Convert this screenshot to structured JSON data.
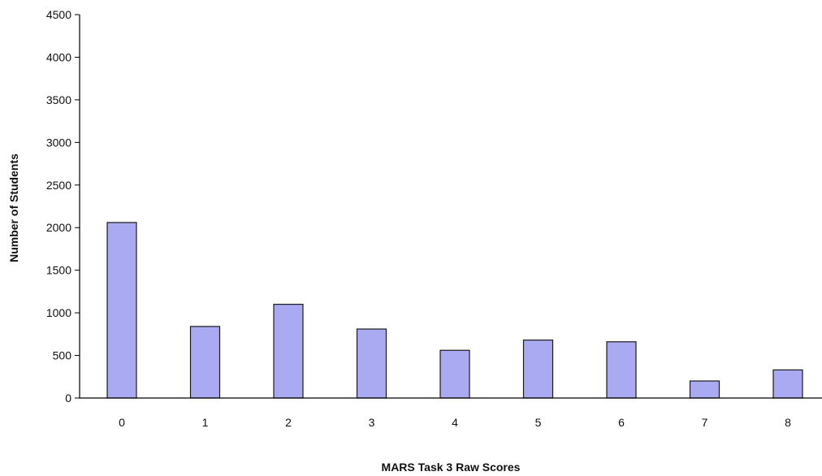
{
  "chart_data": {
    "type": "bar",
    "title": "",
    "xlabel": "MARS Task 3 Raw Scores",
    "ylabel": "Number of Students",
    "categories": [
      "0",
      "1",
      "2",
      "3",
      "4",
      "5",
      "6",
      "7",
      "8"
    ],
    "values": [
      2060,
      840,
      1100,
      810,
      560,
      680,
      660,
      200,
      330
    ],
    "ylim": [
      0,
      4500
    ],
    "yticks": [
      "0",
      "500",
      "1000",
      "1500",
      "2000",
      "2500",
      "3000",
      "3500",
      "4000",
      "4500"
    ],
    "grid": false,
    "legend": "none",
    "bar_color": "#aaaaf2",
    "bar_stroke": "#1a1a1a"
  }
}
